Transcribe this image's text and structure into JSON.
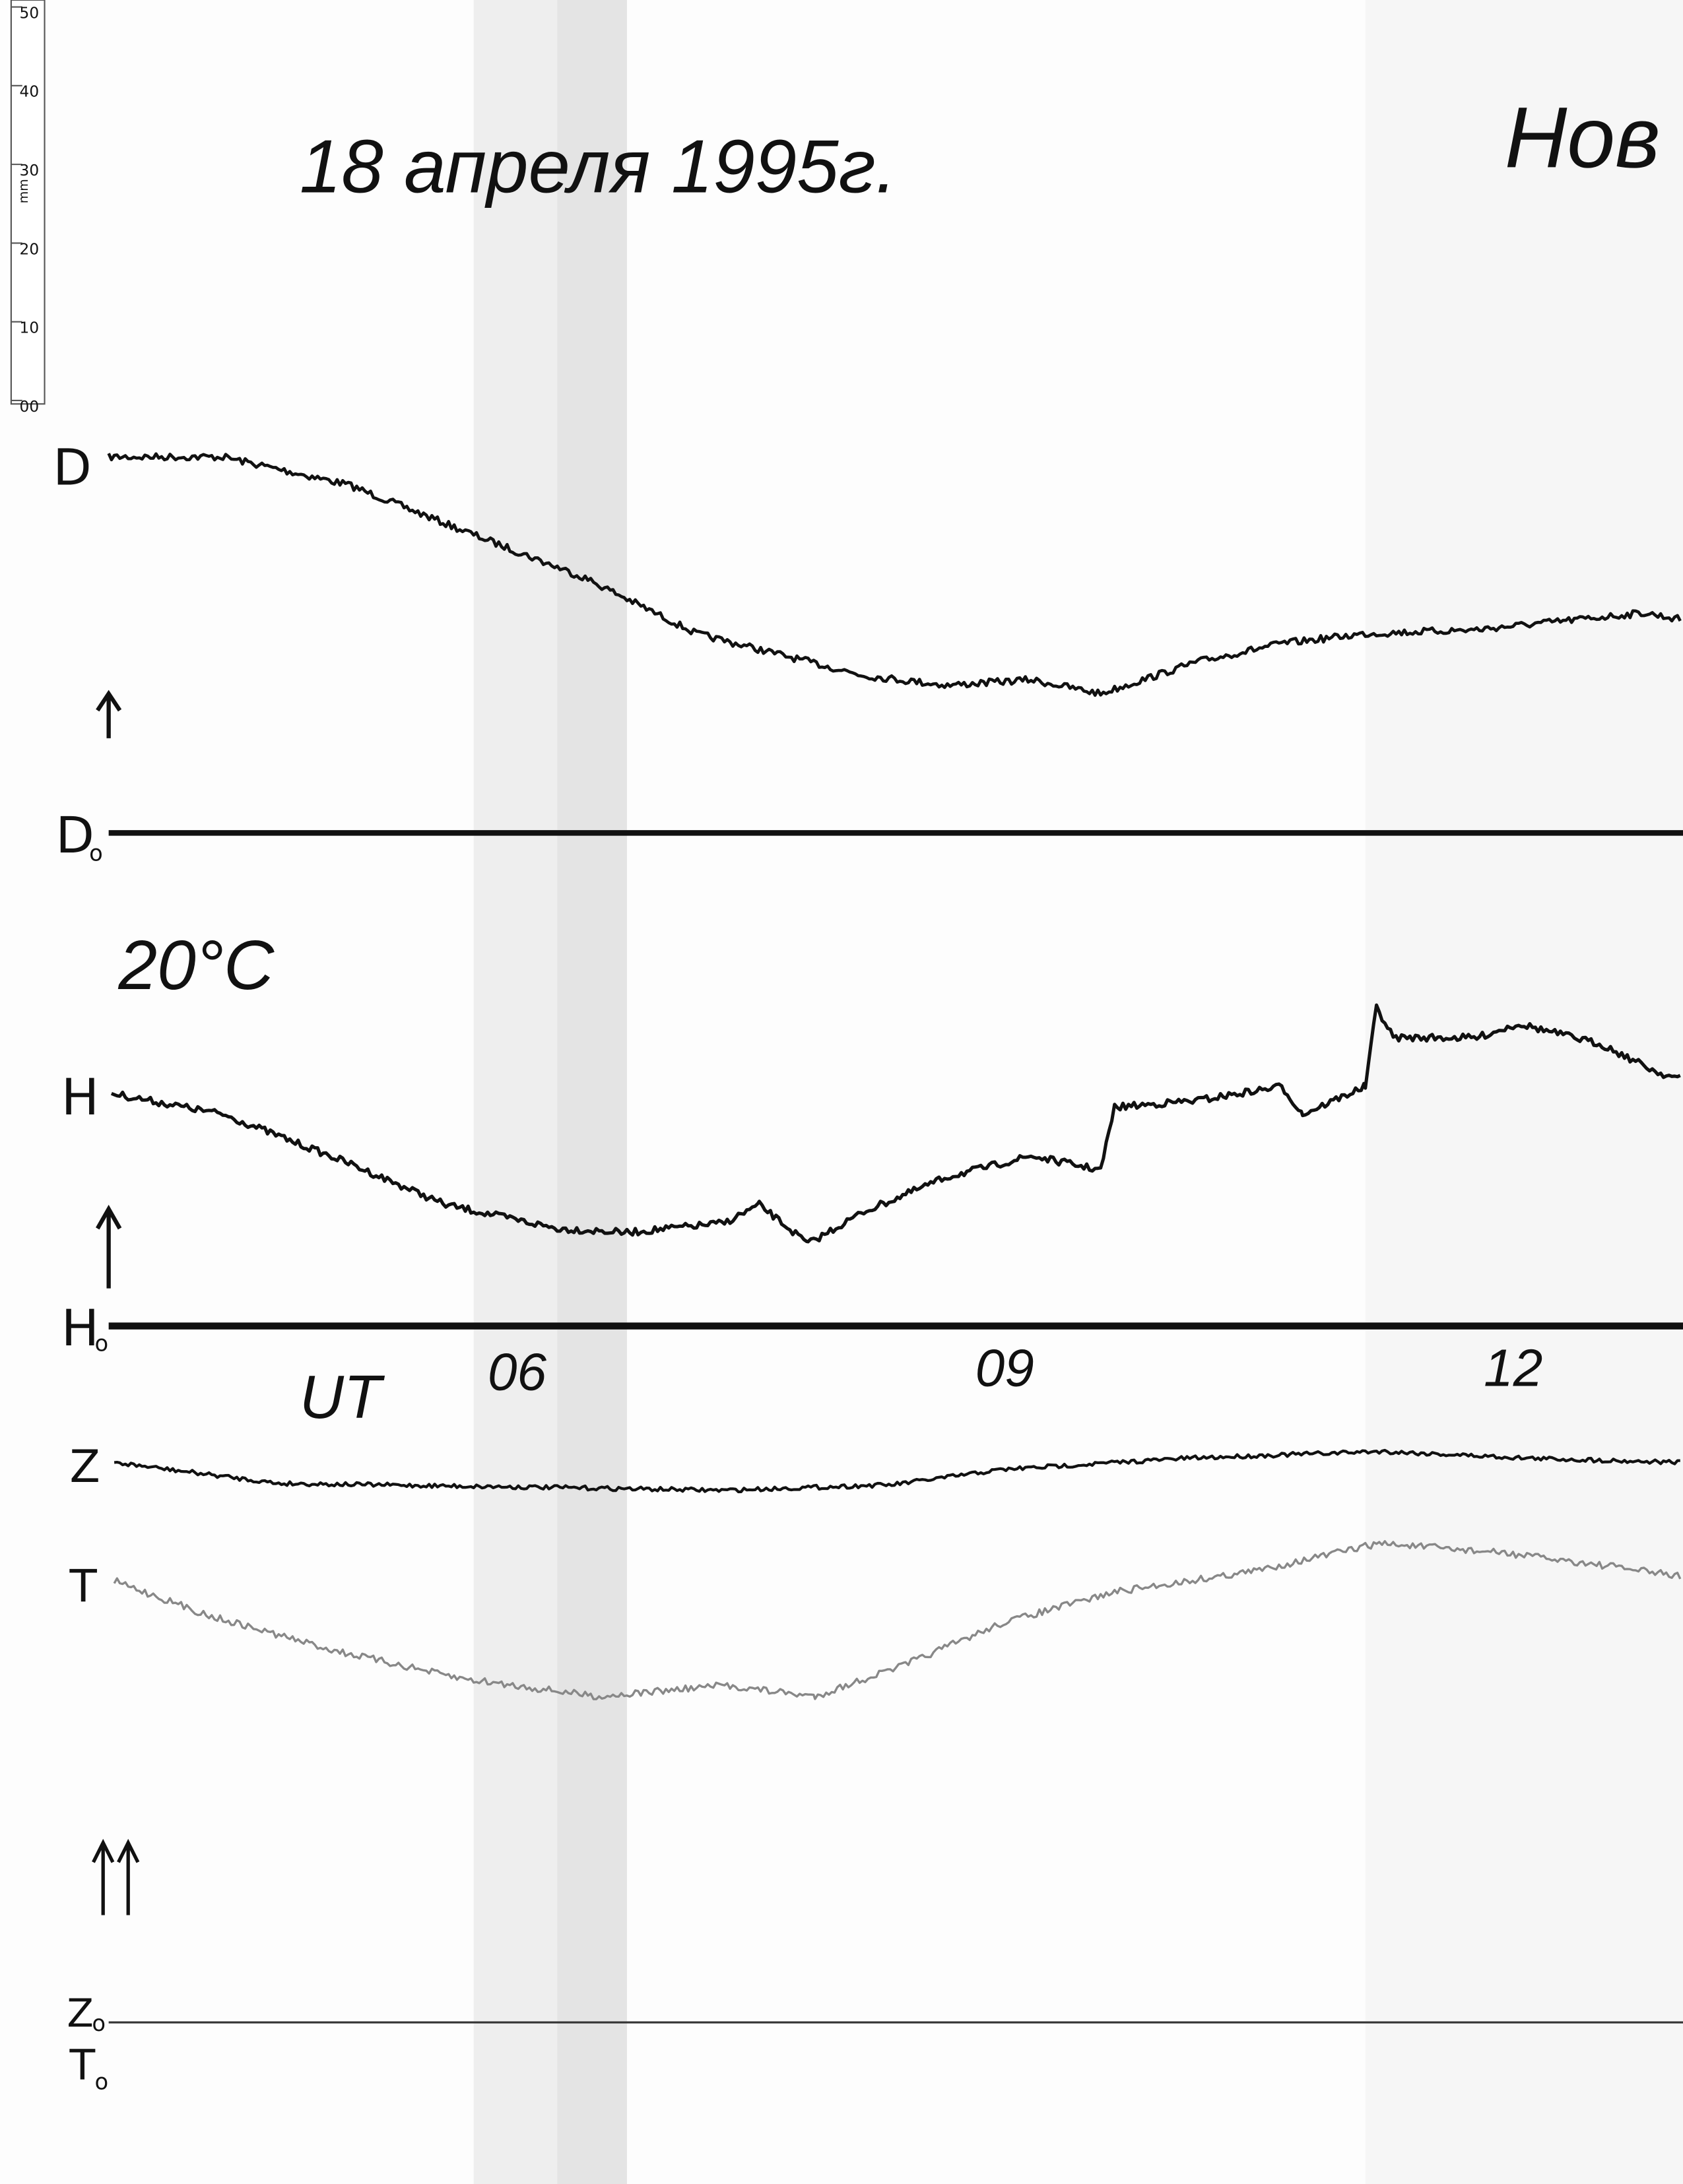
{
  "ruler": {
    "ticks": [
      "50",
      "40",
      "30",
      "20",
      "10",
      "00"
    ],
    "unit": "mm"
  },
  "header": {
    "title": "18 апреля 1995г.",
    "station": "Нов"
  },
  "temperature": "20°C",
  "time": {
    "label": "UT",
    "hours": [
      "06",
      "09",
      "12"
    ]
  },
  "channels": {
    "d": {
      "label": "D",
      "base": "D",
      "base_sub": "o"
    },
    "h": {
      "label": "H",
      "base": "H",
      "base_sub": "o"
    },
    "z": {
      "label": "Z",
      "base": "Z",
      "base_sub": "o"
    },
    "t": {
      "label": "T",
      "base": "T",
      "base_sub": "o"
    }
  }
}
